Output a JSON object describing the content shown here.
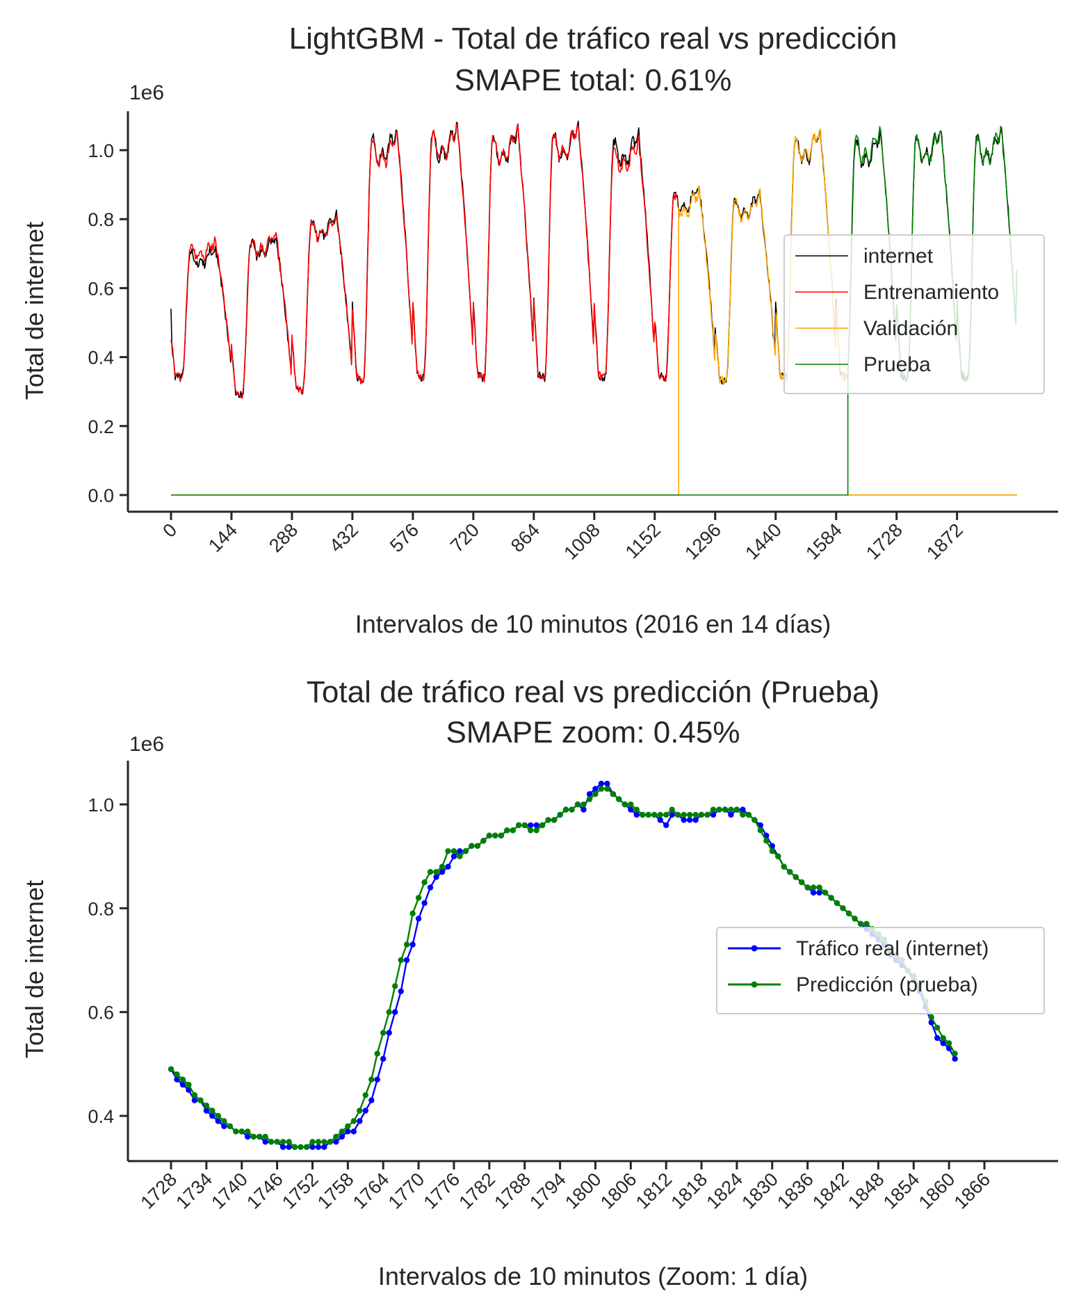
{
  "chart_data": [
    {
      "type": "line",
      "title": "LightGBM - Total de tráfico real vs predicción",
      "subtitle": "SMAPE total: 0.61%",
      "xlabel": "Intervalos de 10 minutos (2016 en 14 días)",
      "ylabel": "Total de internet",
      "offset_label": "1e6",
      "xlim": [
        -120,
        2135
      ],
      "ylim": [
        -0.05,
        1.12
      ],
      "xticks": [
        0,
        144,
        288,
        432,
        576,
        720,
        864,
        1008,
        1152,
        1296,
        1440,
        1584,
        1728,
        1872
      ],
      "xtick_labels": [
        "0",
        "144",
        "288",
        "432",
        "576",
        "720",
        "864",
        "1008",
        "1152",
        "1296",
        "1440",
        "1584",
        "1728",
        "1872"
      ],
      "yticks": [
        0.0,
        0.2,
        0.4,
        0.6,
        0.8,
        1.0
      ],
      "ytick_labels": [
        "0.0",
        "0.2",
        "0.4",
        "0.6",
        "0.8",
        "1.0"
      ],
      "legend": {
        "position": "center-right",
        "entries": [
          {
            "label": "internet",
            "color": "#000000"
          },
          {
            "label": "Entrenamiento",
            "color": "#ff0000"
          },
          {
            "label": "Validación",
            "color": "#ffa500"
          },
          {
            "label": "Prueba",
            "color": "#008000"
          }
        ]
      },
      "day_length": 144,
      "series": [
        {
          "name": "internet",
          "color": "#000000",
          "x_range": [
            0,
            2015
          ],
          "day_peaks": [
            0.7,
            0.73,
            0.79,
            1.03,
            1.04,
            1.03,
            1.04,
            1.02,
            0.87,
            0.85,
            1.03,
            1.02,
            1.03,
            1.03
          ],
          "day_mins": [
            0.34,
            0.29,
            0.3,
            0.33,
            0.34,
            0.34,
            0.34,
            0.34,
            0.34,
            0.33,
            0.34,
            0.34,
            0.34,
            0.34
          ],
          "start_value": 0.54,
          "end_value": 0.65
        },
        {
          "name": "Entrenamiento",
          "color": "#ff0000",
          "x_range": [
            0,
            1209
          ],
          "day_peaks": [
            0.72,
            0.74,
            0.79,
            1.02,
            1.04,
            1.03,
            1.04,
            1.0,
            0.86
          ],
          "day_mins": [
            0.34,
            0.29,
            0.3,
            0.33,
            0.34,
            0.34,
            0.34,
            0.34,
            0.34
          ]
        },
        {
          "name": "Validación",
          "color": "#ffa500",
          "x_range": [
            1209,
            1612
          ],
          "zero_line": [
            0,
            2015
          ],
          "day_peaks": [
            0.86,
            0.85,
            1.03
          ],
          "day_mins": [
            0.33,
            0.33,
            0.34
          ]
        },
        {
          "name": "Prueba",
          "color": "#008000",
          "x_range": [
            1612,
            2015
          ],
          "zero_line": [
            0,
            2015
          ],
          "day_peaks": [
            1.03,
            1.03,
            1.03
          ],
          "day_mins": [
            0.34,
            0.34,
            0.34
          ],
          "end_value": 0.65
        }
      ]
    },
    {
      "type": "line",
      "title": "Total de tráfico real vs predicción (Prueba)",
      "subtitle": "SMAPE zoom: 0.45%",
      "xlabel": "Intervalos de 10 minutos (Zoom: 1 día)",
      "ylabel": "Total de internet",
      "offset_label": "1e6",
      "xlim": [
        1716,
        1878
      ],
      "ylim": [
        0.3,
        1.08
      ],
      "xticks": [
        1728,
        1734,
        1740,
        1746,
        1752,
        1758,
        1764,
        1770,
        1776,
        1782,
        1788,
        1794,
        1800,
        1806,
        1812,
        1818,
        1824,
        1830,
        1836,
        1842,
        1848,
        1854,
        1860,
        1866
      ],
      "xtick_labels": [
        "1728",
        "1734",
        "1740",
        "1746",
        "1752",
        "1758",
        "1764",
        "1770",
        "1776",
        "1782",
        "1788",
        "1794",
        "1800",
        "1806",
        "1812",
        "1818",
        "1824",
        "1830",
        "1836",
        "1842",
        "1848",
        "1854",
        "1860",
        "1866"
      ],
      "yticks": [
        0.4,
        0.6,
        0.8,
        1.0
      ],
      "ytick_labels": [
        "0.4",
        "0.6",
        "0.8",
        "1.0"
      ],
      "legend": {
        "position": "center-right",
        "entries": [
          {
            "label": "Tráfico real (internet)",
            "color": "#0000ff"
          },
          {
            "label": "Predicción (prueba)",
            "color": "#008000"
          }
        ]
      },
      "x_start": 1728,
      "series": [
        {
          "name": "Tráfico real (internet)",
          "color": "#0000ff",
          "values": [
            0.49,
            0.47,
            0.46,
            0.45,
            0.43,
            0.43,
            0.41,
            0.4,
            0.39,
            0.38,
            0.38,
            0.37,
            0.37,
            0.36,
            0.36,
            0.36,
            0.35,
            0.35,
            0.35,
            0.34,
            0.34,
            0.34,
            0.34,
            0.34,
            0.34,
            0.34,
            0.34,
            0.35,
            0.35,
            0.36,
            0.37,
            0.37,
            0.39,
            0.41,
            0.43,
            0.47,
            0.51,
            0.56,
            0.6,
            0.64,
            0.7,
            0.73,
            0.78,
            0.81,
            0.84,
            0.86,
            0.87,
            0.88,
            0.9,
            0.91,
            0.91,
            0.92,
            0.92,
            0.93,
            0.94,
            0.94,
            0.94,
            0.95,
            0.95,
            0.96,
            0.96,
            0.96,
            0.96,
            0.96,
            0.97,
            0.97,
            0.98,
            0.99,
            0.99,
            1.0,
            0.99,
            1.02,
            1.03,
            1.04,
            1.04,
            1.02,
            1.01,
            1.0,
            0.99,
            0.98,
            0.98,
            0.98,
            0.98,
            0.97,
            0.96,
            0.98,
            0.98,
            0.97,
            0.97,
            0.97,
            0.98,
            0.98,
            0.98,
            0.99,
            0.99,
            0.98,
            0.99,
            0.99,
            0.98,
            0.97,
            0.96,
            0.94,
            0.92,
            0.9,
            0.88,
            0.87,
            0.86,
            0.85,
            0.84,
            0.83,
            0.83,
            0.83,
            0.82,
            0.81,
            0.8,
            0.79,
            0.78,
            0.77,
            0.76,
            0.75,
            0.74,
            0.73,
            0.71,
            0.7,
            0.69,
            0.68,
            0.66,
            0.64,
            0.61,
            0.58,
            0.55,
            0.54,
            0.53,
            0.51
          ]
        },
        {
          "name": "Predicción (prueba)",
          "color": "#008000",
          "values": [
            0.49,
            0.48,
            0.47,
            0.46,
            0.44,
            0.43,
            0.42,
            0.41,
            0.4,
            0.39,
            0.38,
            0.37,
            0.37,
            0.37,
            0.36,
            0.36,
            0.36,
            0.35,
            0.35,
            0.35,
            0.35,
            0.34,
            0.34,
            0.34,
            0.35,
            0.35,
            0.35,
            0.35,
            0.36,
            0.37,
            0.38,
            0.39,
            0.41,
            0.44,
            0.47,
            0.52,
            0.56,
            0.6,
            0.65,
            0.7,
            0.73,
            0.79,
            0.82,
            0.85,
            0.87,
            0.87,
            0.88,
            0.91,
            0.91,
            0.9,
            0.91,
            0.92,
            0.92,
            0.93,
            0.94,
            0.94,
            0.94,
            0.95,
            0.95,
            0.96,
            0.96,
            0.95,
            0.95,
            0.96,
            0.97,
            0.97,
            0.98,
            0.99,
            0.99,
            1.0,
            1.0,
            1.01,
            1.02,
            1.03,
            1.03,
            1.02,
            1.01,
            1.0,
            1.0,
            0.99,
            0.98,
            0.98,
            0.98,
            0.98,
            0.98,
            0.99,
            0.98,
            0.98,
            0.98,
            0.98,
            0.98,
            0.98,
            0.99,
            0.99,
            0.99,
            0.99,
            0.99,
            0.98,
            0.98,
            0.97,
            0.95,
            0.93,
            0.91,
            0.9,
            0.88,
            0.87,
            0.86,
            0.85,
            0.84,
            0.84,
            0.84,
            0.83,
            0.82,
            0.81,
            0.8,
            0.79,
            0.78,
            0.77,
            0.77,
            0.76,
            0.75,
            0.74,
            0.72,
            0.71,
            0.7,
            0.68,
            0.67,
            0.65,
            0.62,
            0.59,
            0.57,
            0.55,
            0.54,
            0.52
          ]
        }
      ]
    }
  ]
}
